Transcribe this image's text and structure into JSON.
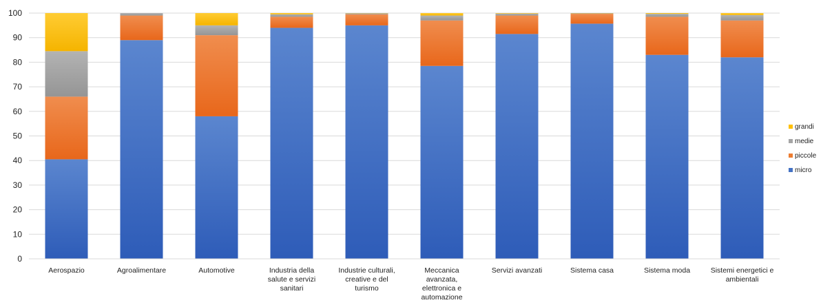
{
  "chart_data": {
    "type": "bar",
    "stacked": true,
    "categories": [
      [
        "Aerospazio"
      ],
      [
        "Agroalimentare"
      ],
      [
        "Automotive"
      ],
      [
        "Industria della",
        "salute e servizi",
        "sanitari"
      ],
      [
        "Industrie culturali,",
        "creative e del",
        "turismo"
      ],
      [
        "Meccanica",
        "avanzata,",
        "elettronica e",
        "automazione"
      ],
      [
        "Servizi avanzati"
      ],
      [
        "Sistema casa"
      ],
      [
        "Sistema moda"
      ],
      [
        "Sistemi energetici e",
        "ambientali"
      ]
    ],
    "series": [
      {
        "name": "micro",
        "color": "#4472C4",
        "values": [
          40.5,
          89,
          58,
          94,
          95,
          78.5,
          91.5,
          95.7,
          83,
          82
        ]
      },
      {
        "name": "piccole",
        "color": "#ED7D31",
        "values": [
          25.5,
          10,
          33,
          4.5,
          4.5,
          18.5,
          7.5,
          4,
          15.5,
          15
        ]
      },
      {
        "name": "medie",
        "color": "#A5A5A5",
        "values": [
          18.5,
          1,
          4,
          1,
          0.4,
          2,
          0.8,
          0.2,
          1.2,
          2.2
        ]
      },
      {
        "name": "grandi",
        "color": "#FFC000",
        "values": [
          15.5,
          0,
          5,
          0.5,
          0.1,
          1,
          0.2,
          0.1,
          0.3,
          0.8
        ]
      }
    ],
    "ylim": [
      0,
      100
    ],
    "yticks": [
      "0",
      "10",
      "20",
      "30",
      "40",
      "50",
      "60",
      "70",
      "80",
      "90",
      "100"
    ],
    "grid": true,
    "legend_position": "right",
    "legend_order": [
      "grandi",
      "medie",
      "piccole",
      "micro"
    ],
    "title": "",
    "xlabel": "",
    "ylabel": ""
  }
}
